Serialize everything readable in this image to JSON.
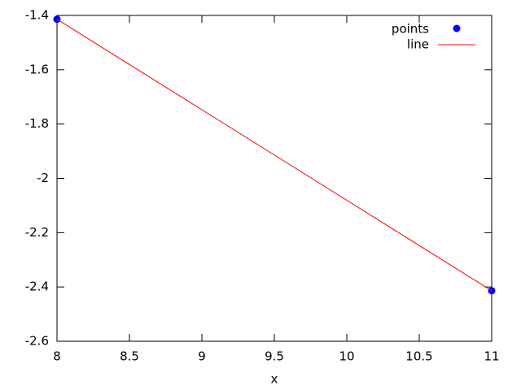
{
  "chart_data": {
    "type": "line",
    "xlabel": "x",
    "x": [
      8,
      11
    ],
    "series": [
      {
        "name": "points",
        "style": "points",
        "color": "#0000ff",
        "values": [
          -1.414,
          -2.414
        ]
      },
      {
        "name": "line",
        "style": "line",
        "color": "#ff0000",
        "values": [
          -1.414,
          -2.414
        ]
      }
    ],
    "xlim": [
      8,
      11
    ],
    "xticks": [
      8,
      8.5,
      9,
      9.5,
      10,
      10.5,
      11
    ],
    "ylim": [
      -2.6,
      -1.4
    ],
    "yticks": [
      -2.6,
      -2.4,
      -2.2,
      -2,
      -1.8,
      -1.6,
      -1.4
    ],
    "grid": false,
    "legend": "top-right"
  }
}
